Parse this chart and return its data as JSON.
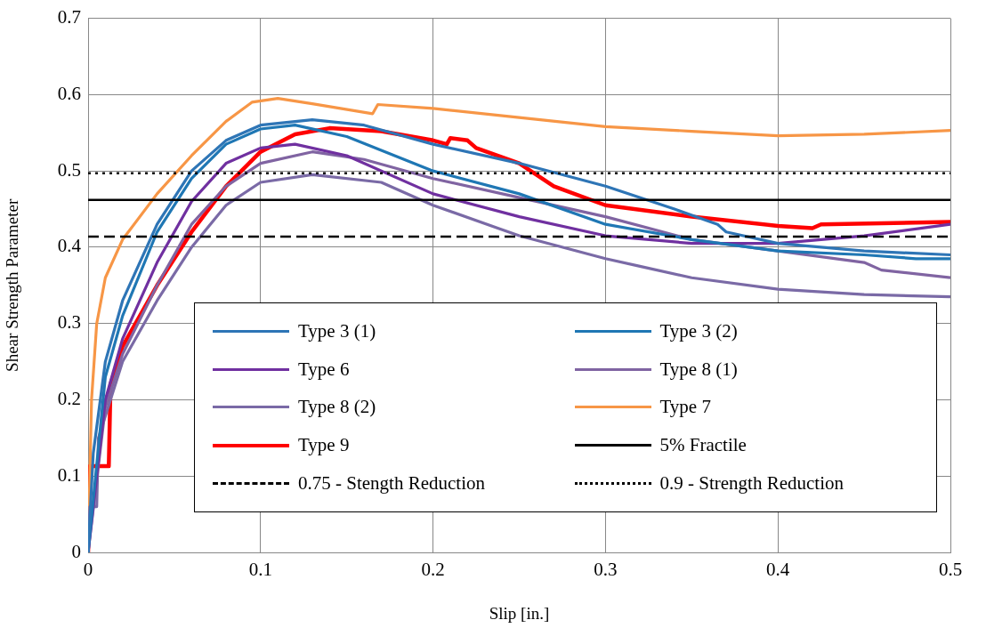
{
  "chart_data": {
    "type": "line",
    "xlabel": "Slip [in.]",
    "ylabel": "Shear Strength Parameter",
    "xlim": [
      0,
      0.5
    ],
    "xticks": [
      0,
      0.1,
      0.2,
      0.3,
      0.4,
      0.5
    ],
    "ylim": [
      0,
      0.7
    ],
    "yticks": [
      0,
      0.1,
      0.2,
      0.3,
      0.4,
      0.5,
      0.6,
      0.7
    ],
    "grid": true,
    "legend": "bottom",
    "marker": "none",
    "line_style": "solid",
    "series": [
      {
        "name": "Type 3 (1)",
        "color": "#2e75b6",
        "x": [
          0,
          0.003,
          0.01,
          0.02,
          0.04,
          0.06,
          0.08,
          0.1,
          0.13,
          0.16,
          0.2,
          0.25,
          0.3,
          0.34,
          0.365,
          0.37,
          0.4,
          0.45,
          0.5
        ],
        "values": [
          0,
          0.13,
          0.25,
          0.33,
          0.43,
          0.5,
          0.54,
          0.56,
          0.567,
          0.56,
          0.535,
          0.51,
          0.48,
          0.45,
          0.43,
          0.42,
          0.405,
          0.395,
          0.39
        ]
      },
      {
        "name": "Type 3 (2)",
        "color": "#1f77b4",
        "x": [
          0,
          0.01,
          0.02,
          0.04,
          0.06,
          0.08,
          0.1,
          0.12,
          0.15,
          0.2,
          0.25,
          0.3,
          0.35,
          0.4,
          0.45,
          0.48,
          0.5
        ],
        "values": [
          0,
          0.23,
          0.31,
          0.42,
          0.49,
          0.535,
          0.555,
          0.56,
          0.545,
          0.5,
          0.47,
          0.43,
          0.41,
          0.395,
          0.39,
          0.385,
          0.385
        ]
      },
      {
        "name": "Type 6",
        "color": "#7030a0",
        "x": [
          0,
          0.01,
          0.02,
          0.04,
          0.06,
          0.08,
          0.1,
          0.12,
          0.15,
          0.2,
          0.25,
          0.3,
          0.35,
          0.4,
          0.45,
          0.5
        ],
        "values": [
          0,
          0.2,
          0.28,
          0.38,
          0.46,
          0.51,
          0.53,
          0.535,
          0.52,
          0.47,
          0.44,
          0.415,
          0.405,
          0.405,
          0.415,
          0.43
        ]
      },
      {
        "name": "Type 8 (1)",
        "color": "#8064a2",
        "x": [
          0,
          0.01,
          0.02,
          0.04,
          0.06,
          0.08,
          0.1,
          0.13,
          0.16,
          0.2,
          0.25,
          0.3,
          0.35,
          0.4,
          0.45,
          0.46,
          0.5
        ],
        "values": [
          0,
          0.19,
          0.26,
          0.35,
          0.43,
          0.48,
          0.51,
          0.525,
          0.515,
          0.49,
          0.465,
          0.44,
          0.41,
          0.395,
          0.38,
          0.37,
          0.36
        ]
      },
      {
        "name": "Type 8 (2)",
        "color": "#7a6aa6",
        "x": [
          0,
          0.001,
          0.005,
          0.006,
          0.02,
          0.04,
          0.06,
          0.08,
          0.1,
          0.13,
          0.17,
          0.2,
          0.25,
          0.3,
          0.32,
          0.35,
          0.4,
          0.45,
          0.5
        ],
        "values": [
          0,
          0.06,
          0.06,
          0.15,
          0.25,
          0.33,
          0.4,
          0.455,
          0.485,
          0.495,
          0.485,
          0.455,
          0.415,
          0.385,
          0.375,
          0.36,
          0.345,
          0.338,
          0.335
        ]
      },
      {
        "name": "Type 7",
        "color": "#f79646",
        "x": [
          0,
          0.002,
          0.005,
          0.01,
          0.02,
          0.04,
          0.06,
          0.08,
          0.095,
          0.11,
          0.13,
          0.165,
          0.168,
          0.2,
          0.25,
          0.3,
          0.35,
          0.4,
          0.45,
          0.5
        ],
        "values": [
          0,
          0.2,
          0.3,
          0.36,
          0.41,
          0.47,
          0.52,
          0.565,
          0.59,
          0.595,
          0.588,
          0.575,
          0.587,
          0.582,
          0.57,
          0.558,
          0.552,
          0.546,
          0.548,
          0.553
        ]
      },
      {
        "name": "Type 9",
        "color": "#ff0000",
        "x": [
          0,
          0.001,
          0.012,
          0.013,
          0.02,
          0.04,
          0.06,
          0.08,
          0.1,
          0.12,
          0.14,
          0.17,
          0.2,
          0.208,
          0.21,
          0.22,
          0.225,
          0.25,
          0.27,
          0.3,
          0.35,
          0.4,
          0.42,
          0.425,
          0.5
        ],
        "values": [
          0,
          0.113,
          0.113,
          0.22,
          0.27,
          0.35,
          0.42,
          0.48,
          0.525,
          0.548,
          0.556,
          0.552,
          0.54,
          0.535,
          0.543,
          0.54,
          0.53,
          0.51,
          0.48,
          0.455,
          0.44,
          0.428,
          0.425,
          0.43,
          0.433
        ]
      }
    ],
    "ref_lines": [
      {
        "axis": "y",
        "value": 0.462,
        "label": "5% Fractile",
        "color": "#000000",
        "line_style": "solid"
      },
      {
        "axis": "y",
        "value": 0.414,
        "label": "0.75 - Stength Reduction",
        "color": "#000000",
        "line_style": "dashed"
      },
      {
        "axis": "y",
        "value": 0.497,
        "label": "0.9 - Strength Reduction",
        "color": "#000000",
        "line_style": "dotted"
      }
    ]
  }
}
